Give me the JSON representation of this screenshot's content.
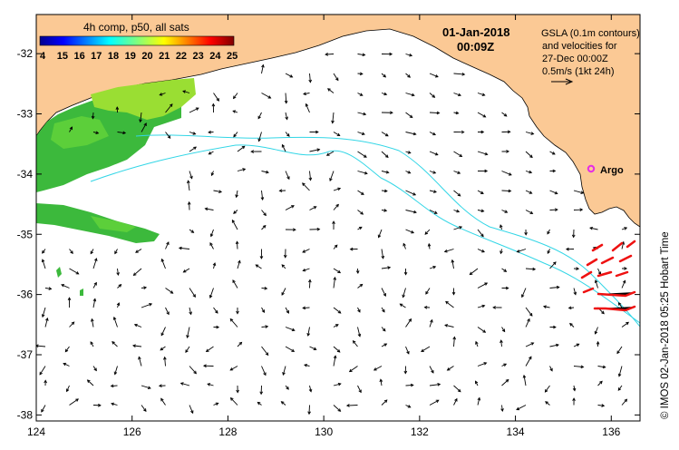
{
  "map": {
    "title_date": "01-Jan-2018",
    "title_time": "00:09Z",
    "legend": {
      "title": "4h comp, p50, all sats",
      "ticks": [
        "4",
        "15",
        "16",
        "17",
        "18",
        "19",
        "20",
        "21",
        "22",
        "23",
        "24",
        "25"
      ]
    },
    "info_lines": [
      "GSLA (0.1m contours)",
      "and velocities for",
      "27-Dec 00:00Z",
      "0.5m/s (1kt 24h)"
    ],
    "argo_label": "Argo",
    "credit": "© IMOS 02-Jan-2018 05:25 Hobart Time",
    "colors": {
      "land": "#fbc995",
      "ocean": "#ffffff",
      "sst_green": "#3cb93c",
      "sst_lime": "#9ade33",
      "contour": "#33d6e6",
      "drifter": "#ee1111",
      "argo": "#e62ce6"
    },
    "x_axis": {
      "range": [
        124,
        136.6
      ],
      "ticks": [
        124,
        126,
        128,
        130,
        132,
        134,
        136
      ],
      "tick_labels": [
        "124",
        "126",
        "128",
        "130",
        "132",
        "134",
        "136"
      ]
    },
    "y_axis": {
      "range": [
        -38.1,
        -31.35
      ],
      "ticks": [
        -32,
        -33,
        -34,
        -35,
        -36,
        -37,
        -38
      ],
      "tick_labels": [
        "-32",
        "-33",
        "-34",
        "-35",
        "-36",
        "-37",
        "-38"
      ]
    }
  }
}
